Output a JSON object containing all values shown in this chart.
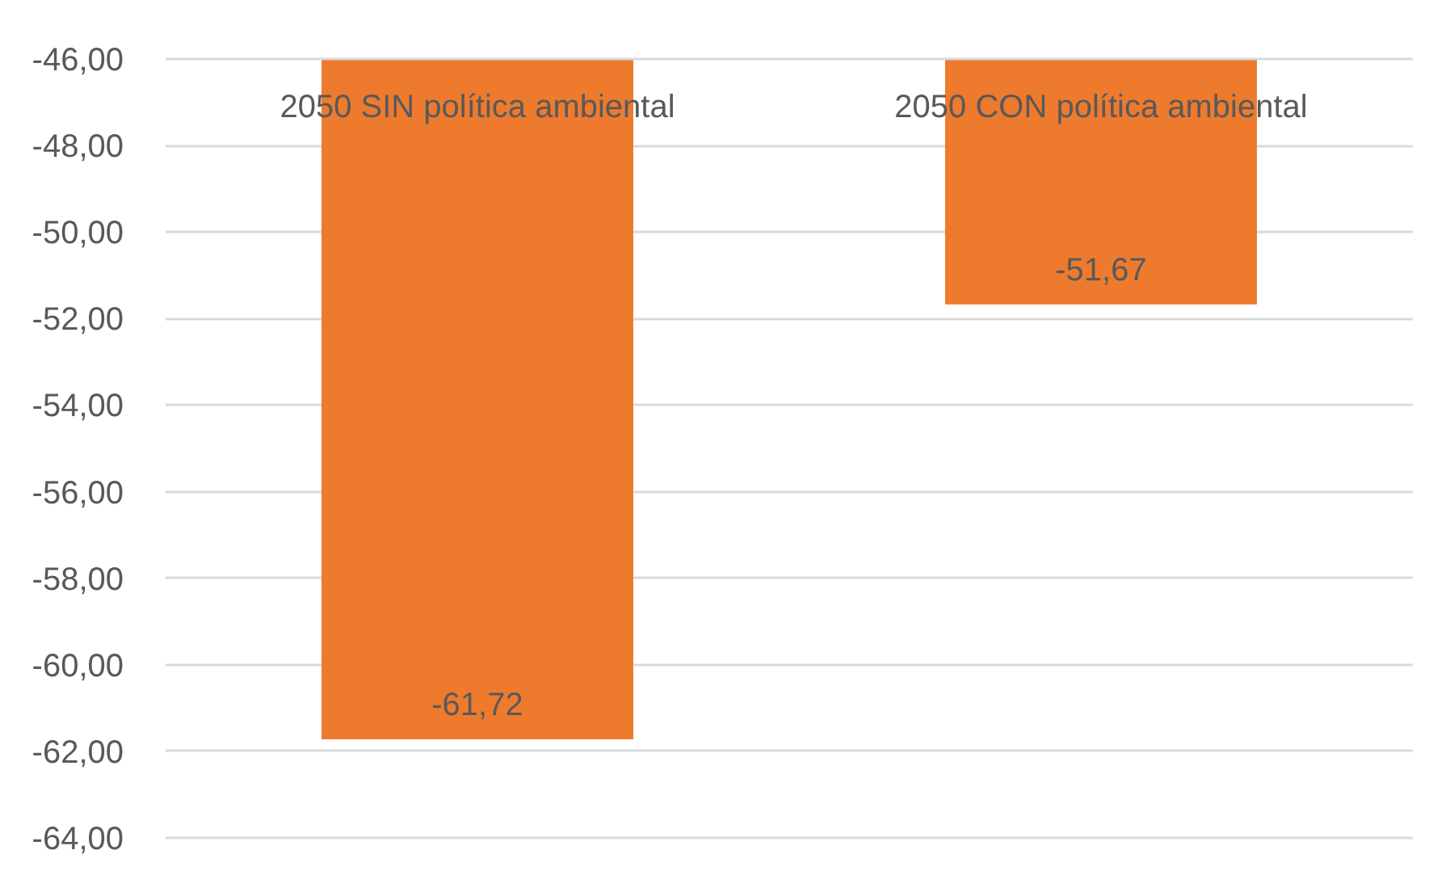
{
  "chart_data": {
    "type": "bar",
    "categories": [
      "2050 SIN política ambiental",
      "2050 CON política ambiental"
    ],
    "values": [
      -61.72,
      -51.67
    ],
    "value_labels": [
      "-61,72",
      "-51,67"
    ],
    "color": "#ee7a2e",
    "ylim": [
      -64,
      -46
    ],
    "yticks": [
      {
        "value": -64,
        "label": "-64,00"
      },
      {
        "value": -62,
        "label": "-62,00"
      },
      {
        "value": -60,
        "label": "-60,00"
      },
      {
        "value": -58,
        "label": "-58,00"
      },
      {
        "value": -56,
        "label": "-56,00"
      },
      {
        "value": -54,
        "label": "-54,00"
      },
      {
        "value": -52,
        "label": "-52,00"
      },
      {
        "value": -50,
        "label": "-50,00"
      },
      {
        "value": -48,
        "label": "-48,00"
      },
      {
        "value": -46,
        "label": "-46,00"
      }
    ],
    "grid": "y"
  }
}
